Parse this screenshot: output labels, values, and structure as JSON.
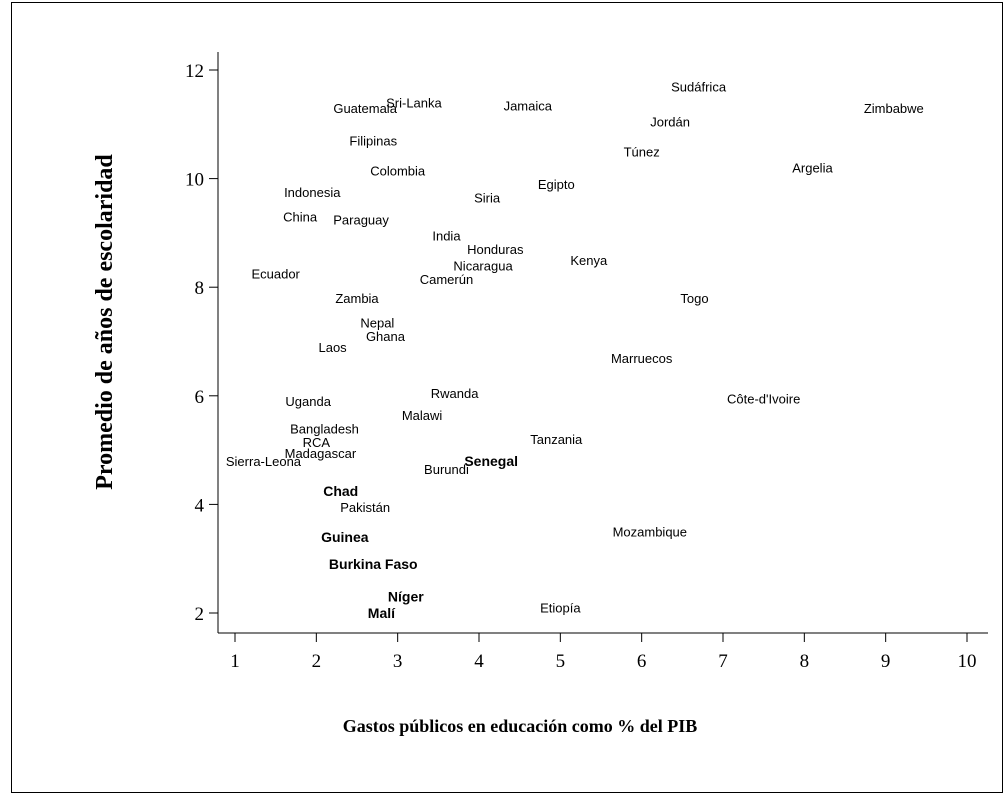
{
  "chart_data": {
    "type": "scatter",
    "xlabel": "Gastos públicos en educación como % del PIB",
    "ylabel": "Promedio de años de escolaridad",
    "xlim": [
      0.8,
      10.3
    ],
    "ylim": [
      1.6,
      12.6
    ],
    "x_ticks": [
      1,
      2,
      3,
      4,
      5,
      6,
      7,
      8,
      9,
      10
    ],
    "y_ticks": [
      2,
      4,
      6,
      8,
      10,
      12
    ],
    "grid": false,
    "legend": "none",
    "marker": "country name as label",
    "points": [
      {
        "label": "Sudáfrica",
        "x": 6.7,
        "y": 11.7
      },
      {
        "label": "Zimbabwe",
        "x": 9.1,
        "y": 11.3
      },
      {
        "label": "Sri-Lanka",
        "x": 3.2,
        "y": 11.4
      },
      {
        "label": "Guatemala",
        "x": 2.6,
        "y": 11.3
      },
      {
        "label": "Jamaica",
        "x": 4.6,
        "y": 11.35
      },
      {
        "label": "Jordán",
        "x": 6.35,
        "y": 11.05
      },
      {
        "label": "Filipinas",
        "x": 2.7,
        "y": 10.7
      },
      {
        "label": "Túnez",
        "x": 6.0,
        "y": 10.5
      },
      {
        "label": "Argelia",
        "x": 8.1,
        "y": 10.2
      },
      {
        "label": "Colombia",
        "x": 3.0,
        "y": 10.15
      },
      {
        "label": "Egipto",
        "x": 4.95,
        "y": 9.9
      },
      {
        "label": "Indonesia",
        "x": 1.95,
        "y": 9.75
      },
      {
        "label": "Siria",
        "x": 4.1,
        "y": 9.65
      },
      {
        "label": "China",
        "x": 1.8,
        "y": 9.3
      },
      {
        "label": "Paraguay",
        "x": 2.55,
        "y": 9.25
      },
      {
        "label": "India",
        "x": 3.6,
        "y": 8.95
      },
      {
        "label": "Honduras",
        "x": 4.2,
        "y": 8.7
      },
      {
        "label": "Kenya",
        "x": 5.35,
        "y": 8.5
      },
      {
        "label": "Nicaragua",
        "x": 4.05,
        "y": 8.4
      },
      {
        "label": "Ecuador",
        "x": 1.5,
        "y": 8.25
      },
      {
        "label": "Camerún",
        "x": 3.6,
        "y": 8.15
      },
      {
        "label": "Togo",
        "x": 6.65,
        "y": 7.8
      },
      {
        "label": "Zambia",
        "x": 2.5,
        "y": 7.8
      },
      {
        "label": "Nepal",
        "x": 2.75,
        "y": 7.35
      },
      {
        "label": "Ghana",
        "x": 2.85,
        "y": 7.1
      },
      {
        "label": "Laos",
        "x": 2.2,
        "y": 6.9
      },
      {
        "label": "Marruecos",
        "x": 6.0,
        "y": 6.7
      },
      {
        "label": "Rwanda",
        "x": 3.7,
        "y": 6.05
      },
      {
        "label": "Côte-d'Ivoire",
        "x": 7.5,
        "y": 5.95
      },
      {
        "label": "Uganda",
        "x": 1.9,
        "y": 5.9
      },
      {
        "label": "Malawi",
        "x": 3.3,
        "y": 5.65
      },
      {
        "label": "Bangladesh",
        "x": 2.1,
        "y": 5.4
      },
      {
        "label": "Tanzania",
        "x": 4.95,
        "y": 5.2
      },
      {
        "label": "RCA",
        "x": 2.0,
        "y": 5.15
      },
      {
        "label": "Madagascar",
        "x": 2.05,
        "y": 4.95
      },
      {
        "label": "Senegal",
        "x": 4.15,
        "y": 4.8
      },
      {
        "label": "Sierra-Leona",
        "x": 1.35,
        "y": 4.8
      },
      {
        "label": "Burundi",
        "x": 3.6,
        "y": 4.65
      },
      {
        "label": "Chad",
        "x": 2.3,
        "y": 4.25
      },
      {
        "label": "Pakistán",
        "x": 2.6,
        "y": 3.95
      },
      {
        "label": "Mozambique",
        "x": 6.1,
        "y": 3.5
      },
      {
        "label": "Guinea",
        "x": 2.35,
        "y": 3.4
      },
      {
        "label": "Burkina Faso",
        "x": 2.7,
        "y": 2.9
      },
      {
        "label": "Níger",
        "x": 3.1,
        "y": 2.3
      },
      {
        "label": "Etiopía",
        "x": 5.0,
        "y": 2.1
      },
      {
        "label": "Malí",
        "x": 2.8,
        "y": 2.0
      }
    ],
    "highlighted": [
      "Senegal",
      "Chad",
      "Guinea",
      "Burkina Faso",
      "Níger",
      "Malí"
    ]
  }
}
